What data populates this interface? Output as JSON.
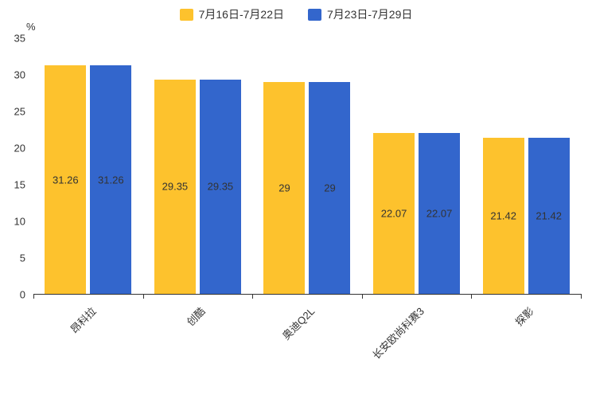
{
  "legend": {
    "items": [
      {
        "label": "7月16日-7月22日",
        "color": "#FDC22D"
      },
      {
        "label": "7月23日-7月29日",
        "color": "#3366CC"
      }
    ]
  },
  "chart_data": {
    "type": "bar",
    "title": "",
    "categories": [
      "昂科拉",
      "创酷",
      "奥迪Q2L",
      "长安欧尚科赛3",
      "探影"
    ],
    "series": [
      {
        "name": "7月16日-7月22日",
        "color": "#FDC22D",
        "values": [
          31.26,
          29.35,
          29,
          22.07,
          21.42
        ],
        "label_color": "#333333"
      },
      {
        "name": "7月23日-7月29日",
        "color": "#3366CC",
        "values": [
          31.26,
          29.35,
          29,
          22.07,
          21.42
        ],
        "label_color": "#333333"
      }
    ],
    "xlabel": "",
    "ylabel": "%",
    "ylim": [
      0,
      35
    ],
    "ytick_step": 5,
    "yticks": [
      0,
      5,
      10,
      15,
      20,
      25,
      30,
      35
    ],
    "grid": false,
    "legend_position": "top",
    "value_labels": "inside-center",
    "category_label_rotation": -45
  }
}
